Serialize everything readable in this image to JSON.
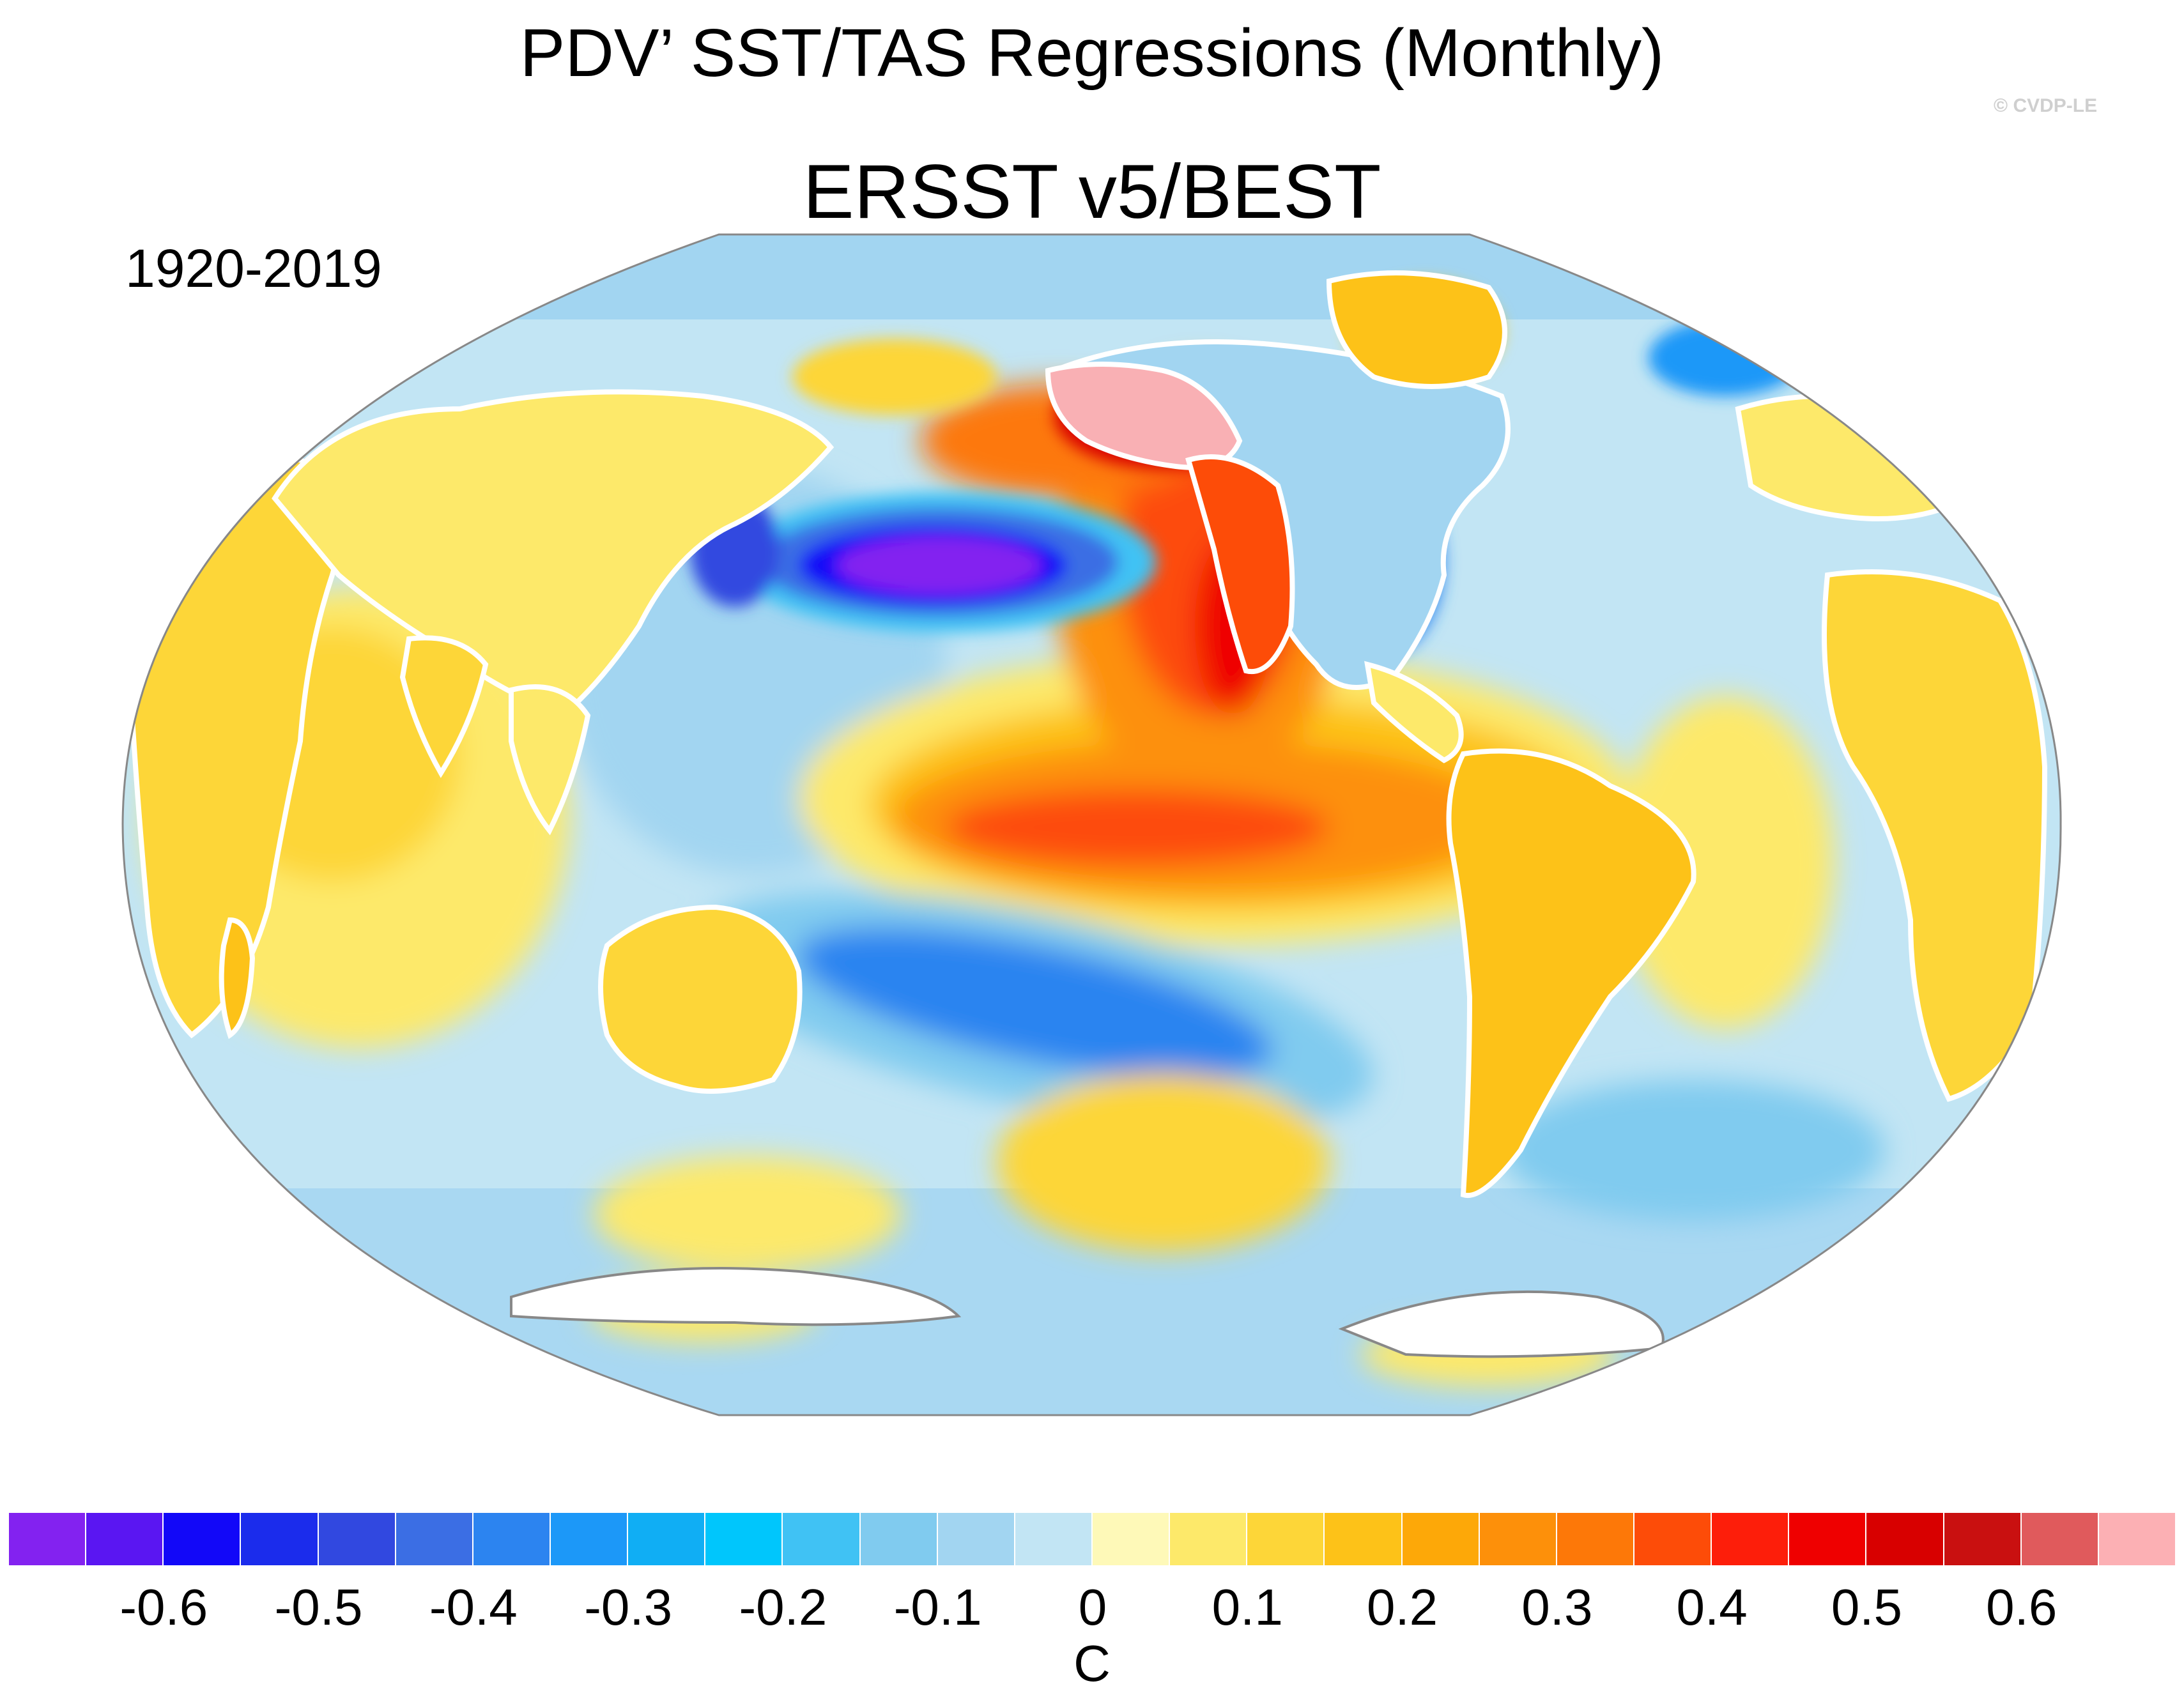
{
  "title": "PDV’ SST/TAS Regressions (Monthly)",
  "subtitle": "ERSST v5/BEST",
  "period": "1920-2019",
  "credit": "© CVDP-LE",
  "map": {
    "projection": "Robinson (Pacific-centered)",
    "features": [
      {
        "name": "north-pacific-cold-anomaly",
        "value": -0.65,
        "color": "#7a28f0"
      },
      {
        "name": "alaska-warm-anomaly",
        "value": 0.7,
        "color": "#f9b0b4"
      },
      {
        "name": "tropical-pacific-warm-tongue",
        "value": 0.35,
        "color": "#ff4a10"
      },
      {
        "name": "south-pacific-cold-arm",
        "value": -0.25,
        "color": "#14b0f0"
      },
      {
        "name": "south-pacific-warm-patch",
        "value": 0.15,
        "color": "#fcc820"
      }
    ]
  },
  "colorbar": {
    "unit": "C",
    "tick_labels": [
      "-0.6",
      "-0.5",
      "-0.4",
      "-0.3",
      "-0.2",
      "-0.1",
      "0",
      "0.1",
      "0.2",
      "0.3",
      "0.4",
      "0.5",
      "0.6"
    ],
    "tick_values": [
      -0.6,
      -0.5,
      -0.4,
      -0.3,
      -0.2,
      -0.1,
      0,
      0.1,
      0.2,
      0.3,
      0.4,
      0.5,
      0.6
    ],
    "levels_min": -0.7,
    "levels_max": 0.7,
    "level_step": 0.05,
    "colors": [
      "#8322f0",
      "#5a16f2",
      "#1208f8",
      "#1b2cec",
      "#3148e0",
      "#3b6ee4",
      "#2c84f0",
      "#1c98f8",
      "#10aef4",
      "#00c6fc",
      "#40c2f4",
      "#80cbef",
      "#a2d5f1",
      "#c2e5f4",
      "#fef9b8",
      "#fde96a",
      "#fdd638",
      "#fdc218",
      "#fda808",
      "#fd900a",
      "#fd7808",
      "#fd4c08",
      "#fd1e0a",
      "#ef0000",
      "#d80000",
      "#c91010",
      "#e05a5c",
      "#fcb0b4"
    ]
  }
}
